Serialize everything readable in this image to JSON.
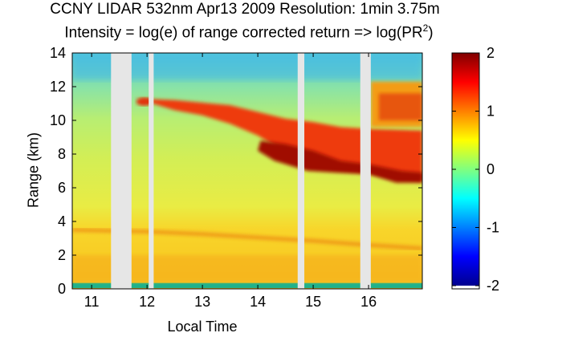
{
  "chart_data": {
    "type": "heatmap",
    "title": "CCNY LIDAR 532nm Apr13 2009 Resolution: 1min 3.75m",
    "subtitle_prefix": "Intensity = log(e) of range corrected return => log(PR",
    "subtitle_superscript": "2",
    "subtitle_suffix": ")",
    "xlabel": "Local Time",
    "ylabel": "Range (km)",
    "xlim": [
      10.65,
      16.97
    ],
    "ylim": [
      0,
      14
    ],
    "xticks": [
      11,
      12,
      13,
      14,
      15,
      16
    ],
    "yticks": [
      0,
      2,
      4,
      6,
      8,
      10,
      12,
      14
    ],
    "colorbar": {
      "range": [
        -2,
        2
      ],
      "ticks": [
        -2,
        -1,
        0,
        1,
        2
      ],
      "tick_labels": [
        "-2",
        "-1",
        "0",
        "1",
        "2"
      ],
      "colormap": "jet"
    },
    "data_gaps_local_time": [
      [
        11.35,
        11.72
      ],
      [
        12.03,
        12.12
      ],
      [
        14.72,
        14.84
      ],
      [
        15.85,
        16.04
      ]
    ],
    "features": {
      "boundary_layer_top_km": {
        "x": [
          10.65,
          12.0,
          13.0,
          14.0,
          15.0,
          16.0,
          16.97
        ],
        "y": [
          3.5,
          3.4,
          3.25,
          3.05,
          2.85,
          2.6,
          2.4
        ]
      },
      "cirrus_top_km": {
        "x": [
          11.8,
          12.5,
          13.5,
          14.0,
          14.5,
          15.0,
          15.5,
          16.0,
          16.97
        ],
        "y": [
          11.3,
          11.2,
          10.9,
          10.5,
          10.1,
          9.9,
          9.6,
          9.5,
          9.4
        ]
      },
      "cirrus_base_km": {
        "x": [
          12.5,
          13.0,
          13.5,
          14.0,
          14.5,
          15.0,
          15.5,
          16.0,
          16.97
        ],
        "y": [
          10.6,
          10.3,
          9.8,
          9.1,
          8.1,
          7.3,
          7.1,
          6.9,
          6.4
        ]
      },
      "upper_cloud_16h_km": {
        "x": [
          16.04,
          16.97
        ],
        "y_top": 12.3,
        "y_base": 9.6
      }
    }
  }
}
